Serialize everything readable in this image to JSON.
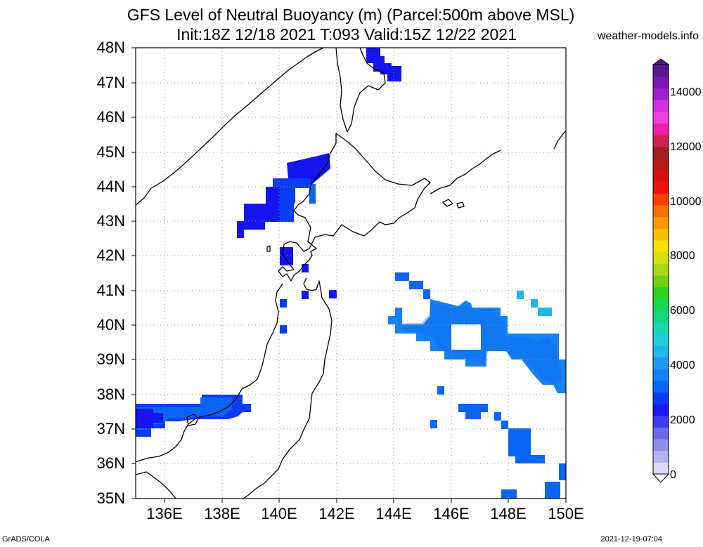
{
  "title_line1": "GFS Level of Neutral Buoyancy (m) (Parcel:500m above MSL)",
  "title_line2": "Init:18Z 12/18 2021 T:093 Valid:15Z 12/22 2021",
  "credit": "weather-models.info",
  "footer_left": "GrADS/COLA",
  "footer_right": "2021-12-19-07:04",
  "map": {
    "lon_range": [
      135,
      150
    ],
    "lat_range": [
      35,
      48
    ],
    "lat_labels": [
      "48N",
      "47N",
      "46N",
      "45N",
      "44N",
      "43N",
      "42N",
      "41N",
      "40N",
      "39N",
      "38N",
      "37N",
      "36N",
      "35N"
    ],
    "lon_labels": [
      "136E",
      "138E",
      "140E",
      "142E",
      "144E",
      "146E",
      "148E",
      "150E"
    ]
  },
  "colorbar": {
    "min": 0,
    "max": 15000,
    "labels": [
      "14000",
      "12000",
      "10000",
      "8000",
      "6000",
      "4000",
      "2000",
      "0"
    ],
    "colors": [
      "#d8d8f4",
      "#b4b4ee",
      "#9090ea",
      "#6a6aea",
      "#3c3cf0",
      "#1818f4",
      "#0a3cf5",
      "#0a64f5",
      "#1282f5",
      "#1e9af0",
      "#20b8e8",
      "#20d0d8",
      "#18d8b0",
      "#14d880",
      "#18d850",
      "#30d020",
      "#70d018",
      "#a8d818",
      "#d8e010",
      "#f8e000",
      "#f8c000",
      "#f89a00",
      "#f87000",
      "#f84000",
      "#f01010",
      "#d81010",
      "#b81818",
      "#a02020",
      "#d02050",
      "#f020a0",
      "#f040e0",
      "#d030e0",
      "#a020d0",
      "#7818b0",
      "#561890"
    ]
  },
  "legend": {
    "c1": "#1414ee",
    "c2": "#0a3cf5",
    "c3": "#0a64f5",
    "c4": "#1482f2",
    "c5": "#1cb8ea"
  }
}
